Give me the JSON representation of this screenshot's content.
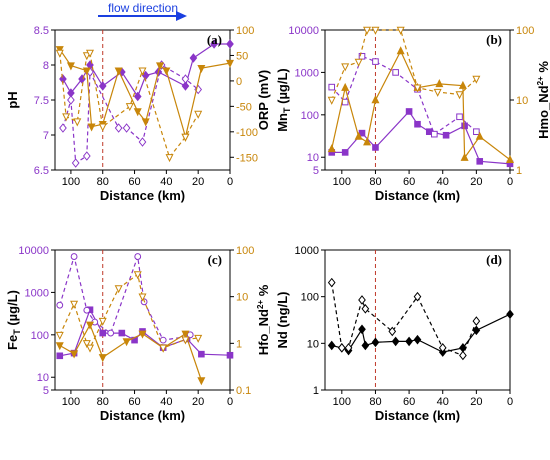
{
  "header": {
    "flow_label": "flow direction"
  },
  "colors": {
    "purple": "#8a35c8",
    "orange": "#c8860a",
    "redline": "#c0392b",
    "arrow": "#1a3fe0",
    "black": "#000000"
  },
  "chart_data": [
    {
      "panel": "(a)",
      "type": "line",
      "xlabel": "Distance (km)",
      "xlim": [
        110,
        0
      ],
      "xticks": [
        100,
        80,
        60,
        40,
        20,
        0
      ],
      "vline_x": 80,
      "left_axis": {
        "label": "pH",
        "ylim": [
          6.5,
          8.5
        ],
        "ticks": [
          6.5,
          7,
          7.5,
          8,
          8.5
        ],
        "scale": "linear"
      },
      "right_axis": {
        "label": "ORP (mV)",
        "ylim": [
          -175,
          100
        ],
        "ticks": [
          -150,
          -100,
          -50,
          0,
          50,
          100
        ],
        "scale": "linear"
      },
      "series": [
        {
          "axis": "left",
          "color": "purple",
          "dash": false,
          "marker": "diamond",
          "filled": true,
          "x": [
            105,
            100,
            93,
            88,
            80,
            68,
            58,
            53,
            45,
            28,
            23,
            10,
            0
          ],
          "y": [
            7.8,
            7.6,
            7.8,
            8.0,
            7.7,
            7.9,
            7.55,
            7.85,
            7.9,
            7.7,
            8.1,
            8.3,
            8.3
          ]
        },
        {
          "axis": "left",
          "color": "purple",
          "dash": true,
          "marker": "diamond",
          "filled": false,
          "x": [
            105,
            100,
            97,
            90,
            88,
            70,
            65,
            55,
            43,
            28,
            20
          ],
          "y": [
            7.1,
            7.5,
            6.6,
            6.7,
            7.9,
            7.1,
            7.1,
            6.9,
            8.0,
            7.8,
            7.65
          ]
        },
        {
          "axis": "right",
          "color": "orange",
          "dash": false,
          "marker": "triangle-down",
          "filled": true,
          "x": [
            107,
            100,
            90,
            87,
            80,
            70,
            58,
            53,
            44,
            40,
            28,
            18,
            0
          ],
          "y": [
            62,
            30,
            20,
            -90,
            -85,
            20,
            -60,
            -80,
            30,
            20,
            -110,
            25,
            35
          ]
        },
        {
          "axis": "right",
          "color": "orange",
          "dash": true,
          "marker": "triangle-down",
          "filled": false,
          "x": [
            107,
            103,
            96,
            90,
            88,
            80,
            63,
            55,
            38,
            28,
            20
          ],
          "y": [
            55,
            -70,
            -80,
            50,
            55,
            -90,
            -50,
            20,
            -150,
            -110,
            -65
          ]
        }
      ]
    },
    {
      "panel": "(b)",
      "type": "line",
      "xlabel": "Distance (km)",
      "xlim": [
        110,
        0
      ],
      "xticks": [
        100,
        80,
        60,
        40,
        20,
        0
      ],
      "vline_x": 80,
      "left_axis": {
        "label": "Mnt (µg/L)",
        "ylim": [
          5,
          10000
        ],
        "ticks": [
          5,
          10,
          100,
          1000,
          10000
        ],
        "scale": "log"
      },
      "right_axis": {
        "label": "Hmo_Nd2+ %",
        "ylim": [
          1,
          100
        ],
        "ticks": [
          1,
          10,
          100
        ],
        "scale": "log"
      },
      "series": [
        {
          "axis": "left",
          "color": "purple",
          "dash": false,
          "marker": "square",
          "filled": true,
          "x": [
            106,
            98,
            88,
            80,
            60,
            55,
            48,
            38,
            27,
            18,
            0
          ],
          "y": [
            13,
            13,
            37,
            17,
            120,
            60,
            40,
            33,
            55,
            8,
            7
          ]
        },
        {
          "axis": "left",
          "color": "purple",
          "dash": true,
          "marker": "square",
          "filled": false,
          "x": [
            106,
            98,
            88,
            80,
            68,
            55,
            45,
            30,
            20
          ],
          "y": [
            450,
            200,
            2400,
            1800,
            1000,
            400,
            35,
            90,
            40
          ]
        },
        {
          "axis": "right",
          "color": "orange",
          "dash": false,
          "marker": "triangle-up",
          "filled": true,
          "x": [
            106,
            98,
            90,
            85,
            80,
            65,
            55,
            42,
            28,
            27,
            18,
            0
          ],
          "y": [
            2,
            15,
            3,
            2.5,
            10,
            50,
            15,
            17,
            16,
            1.5,
            3,
            1.4
          ]
        },
        {
          "axis": "right",
          "color": "orange",
          "dash": true,
          "marker": "triangle-down",
          "filled": false,
          "x": [
            106,
            98,
            90,
            85,
            80,
            65,
            55,
            43,
            30,
            20
          ],
          "y": [
            10,
            30,
            35,
            100,
            100,
            100,
            15,
            13,
            12,
            20
          ]
        }
      ]
    },
    {
      "panel": "(c)",
      "type": "line",
      "xlabel": "Distance (km)",
      "xlim": [
        110,
        0
      ],
      "xticks": [
        100,
        80,
        60,
        40,
        20,
        0
      ],
      "vline_x": 80,
      "left_axis": {
        "label": "FeT (µg/L)",
        "ylim": [
          5,
          10000
        ],
        "ticks": [
          5,
          10,
          100,
          1000,
          10000
        ],
        "scale": "log"
      },
      "right_axis": {
        "label": "Hfo_Nd2+ %",
        "ylim": [
          0.1,
          100
        ],
        "ticks": [
          0.1,
          1,
          10,
          100
        ],
        "scale": "log"
      },
      "series": [
        {
          "axis": "left",
          "color": "purple",
          "dash": false,
          "marker": "square",
          "filled": true,
          "x": [
            107,
            98,
            88,
            80,
            68,
            60,
            55,
            42,
            27,
            18,
            0
          ],
          "y": [
            32,
            37,
            390,
            110,
            110,
            75,
            120,
            50,
            80,
            35,
            33
          ]
        },
        {
          "axis": "left",
          "color": "purple",
          "dash": true,
          "marker": "circle",
          "filled": false,
          "x": [
            107,
            98,
            90,
            85,
            75,
            58,
            54,
            42,
            28,
            25
          ],
          "y": [
            500,
            7000,
            380,
            200,
            110,
            7000,
            600,
            75,
            90,
            100
          ]
        },
        {
          "axis": "right",
          "color": "orange",
          "dash": false,
          "marker": "triangle-down",
          "filled": true,
          "x": [
            107,
            98,
            88,
            80,
            65,
            55,
            42,
            28,
            18
          ],
          "y": [
            0.9,
            0.6,
            2.5,
            0.5,
            1.1,
            1.6,
            0.8,
            1.6,
            0.16
          ]
        },
        {
          "axis": "right",
          "color": "orange",
          "dash": true,
          "marker": "triangle-down",
          "filled": false,
          "x": [
            107,
            98,
            90,
            88,
            80,
            70,
            58,
            55,
            42,
            28,
            20
          ],
          "y": [
            1.5,
            7,
            1,
            0.8,
            3,
            15,
            30,
            10,
            0.8,
            1.2,
            1.3
          ]
        }
      ]
    },
    {
      "panel": "(d)",
      "type": "line",
      "xlabel": "Distance (km)",
      "xlim": [
        110,
        0
      ],
      "xticks": [
        100,
        80,
        60,
        40,
        20,
        0
      ],
      "vline_x": 80,
      "left_axis": {
        "label": "Nd (ng/L)",
        "ylim": [
          1,
          1000
        ],
        "ticks": [
          1,
          10,
          100,
          1000
        ],
        "scale": "log"
      },
      "right_axis": null,
      "series": [
        {
          "axis": "left",
          "color": "black",
          "dash": false,
          "marker": "diamond",
          "filled": true,
          "x": [
            106,
            100,
            96,
            88,
            86,
            80,
            68,
            60,
            55,
            40,
            28,
            20,
            0
          ],
          "y": [
            9,
            8,
            7,
            20,
            9,
            10.5,
            11,
            11,
            12,
            6.5,
            8,
            19,
            42
          ]
        },
        {
          "axis": "left",
          "color": "black",
          "dash": true,
          "marker": "diamond",
          "filled": false,
          "x": [
            106,
            100,
            96,
            88,
            86,
            70,
            55,
            40,
            28,
            20
          ],
          "y": [
            200,
            8,
            8,
            85,
            55,
            18,
            100,
            8,
            5.5,
            30
          ]
        }
      ]
    }
  ]
}
